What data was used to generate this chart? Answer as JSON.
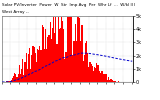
{
  "title_line1": "Solar PV/Inverter  Power  W  Str  Imp Avg  Per  Whr Lf  ...",
  "title_line2": "West Array --",
  "bar_color": "#ff0000",
  "line_color": "#0000cc",
  "background_color": "#ffffff",
  "plot_bg_color": "#ffffff",
  "grid_color": "#aaaaaa",
  "num_bars": 115,
  "ylim": [
    0,
    5000
  ],
  "ytick_labels": [
    "5k",
    "4k",
    "3k",
    "2k",
    "1k",
    "0"
  ],
  "ytick_vals": [
    5000,
    4000,
    3000,
    2000,
    1000,
    0
  ],
  "title_fontsize": 3.2,
  "ylabel_fontsize": 3.5,
  "xlabel_fontsize": 3.0
}
